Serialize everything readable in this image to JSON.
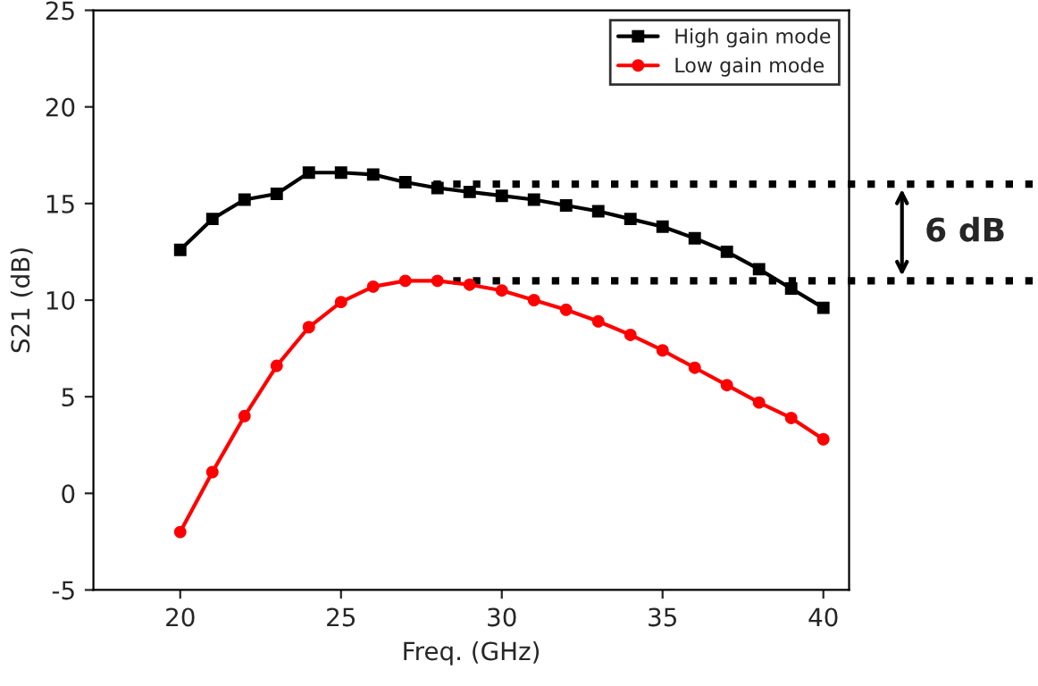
{
  "chart_data": {
    "type": "line",
    "xlabel": "Freq. (GHz)",
    "ylabel": "S21 (dB)",
    "x": [
      20,
      21,
      22,
      23,
      24,
      25,
      26,
      27,
      28,
      29,
      30,
      31,
      32,
      33,
      34,
      35,
      36,
      37,
      38,
      39,
      40
    ],
    "series": [
      {
        "name": "High gain mode",
        "color": "#000000",
        "marker": "square",
        "values": [
          12.6,
          14.2,
          15.2,
          15.5,
          16.6,
          16.6,
          16.5,
          16.1,
          15.8,
          15.6,
          15.4,
          15.2,
          14.9,
          14.6,
          14.2,
          13.8,
          13.2,
          12.5,
          11.6,
          10.6,
          9.6
        ]
      },
      {
        "name": "Low gain mode",
        "color": "#ff0000",
        "marker": "circle",
        "values": [
          -2,
          1.1,
          4.0,
          6.6,
          8.6,
          9.9,
          10.7,
          11.0,
          11.0,
          10.8,
          10.5,
          10.0,
          9.5,
          8.9,
          8.2,
          7.4,
          6.5,
          5.6,
          4.7,
          3.9,
          2.8
        ]
      }
    ],
    "xlim": [
      17.3,
      40.8
    ],
    "ylim": [
      -5,
      25
    ],
    "xticks": [
      20,
      25,
      30,
      35,
      40
    ],
    "yticks": [
      -5,
      0,
      5,
      10,
      15,
      20,
      25
    ],
    "ref_lines": [
      {
        "axis": "y",
        "value": 16,
        "line_style": "dotted",
        "color": "#000000"
      },
      {
        "axis": "y",
        "value": 11,
        "line_style": "dotted",
        "color": "#000000"
      }
    ],
    "annotations": [
      "6 dB"
    ],
    "legend": "top right",
    "grid": false,
    "line_style": "solid"
  }
}
